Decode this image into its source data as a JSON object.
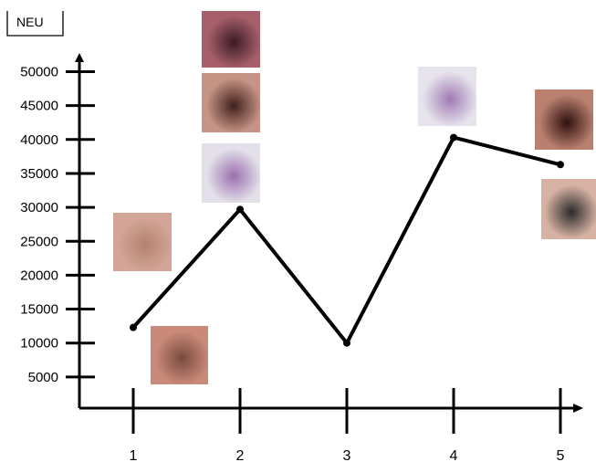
{
  "chart_data": {
    "type": "line",
    "title": "",
    "ylabel": "NEU",
    "xlabel": "",
    "ylim": [
      0,
      52000
    ],
    "yticks": [
      5000,
      10000,
      15000,
      20000,
      25000,
      30000,
      35000,
      40000,
      45000,
      50000
    ],
    "ytick_labels": [
      "5000",
      "10000",
      "15000",
      "20000",
      "25000",
      "30000",
      "35000",
      "40000",
      "45000",
      "50000"
    ],
    "x": [
      1,
      2,
      3,
      4,
      5
    ],
    "xtick_labels": [
      "1",
      "2",
      "3",
      "4",
      "5"
    ],
    "series": [
      {
        "values": [
          12300,
          29700,
          10000,
          40300,
          36300
        ]
      }
    ],
    "grid": false,
    "legend": "none",
    "line_color": "#000000",
    "photos": [
      {
        "name": "photo-tongue-lesion",
        "subject": "tongue with dark lesions",
        "near_x": 1,
        "colors": [
          "#c98a7a",
          "#7a4a3e"
        ]
      },
      {
        "name": "photo-skin-arm",
        "subject": "skin of arm",
        "near_x": 1,
        "colors": [
          "#d3a596",
          "#b48270"
        ]
      },
      {
        "name": "photo-dark-wound",
        "subject": "dark skin wound",
        "near_x": 2,
        "colors": [
          "#a7606b",
          "#3c1a26"
        ]
      },
      {
        "name": "photo-hand-lesions",
        "subject": "hand with dark lesions",
        "near_x": 2,
        "colors": [
          "#c59485",
          "#40201c"
        ]
      },
      {
        "name": "photo-blood-smear-1",
        "subject": "blood smear microscopy",
        "near_x": 2,
        "colors": [
          "#e3e0ea",
          "#9a6fae"
        ]
      },
      {
        "name": "photo-blood-smear-2",
        "subject": "blood smear microscopy",
        "near_x": 4,
        "colors": [
          "#e6e3ec",
          "#a07ab4"
        ]
      },
      {
        "name": "photo-necrotic-hand",
        "subject": "hand with necrotic lesion",
        "near_x": 5,
        "colors": [
          "#b9806f",
          "#30100e"
        ]
      },
      {
        "name": "photo-patient-face",
        "subject": "patient face",
        "near_x": 5,
        "colors": [
          "#d7b2a3",
          "#2a2a2a"
        ]
      }
    ]
  }
}
